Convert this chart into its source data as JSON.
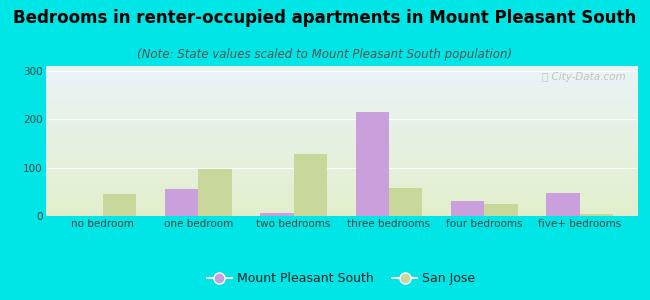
{
  "title": "Bedrooms in renter-occupied apartments in Mount Pleasant South",
  "subtitle": "(Note: State values scaled to Mount Pleasant South population)",
  "categories": [
    "no bedroom",
    "one bedroom",
    "two bedrooms",
    "three bedrooms",
    "four bedrooms",
    "five+ bedrooms"
  ],
  "mps_values": [
    0,
    55,
    7,
    215,
    32,
    47
  ],
  "sj_values": [
    45,
    97,
    128,
    57,
    25,
    5
  ],
  "mps_color": "#c9a0dc",
  "sj_color": "#c8d89a",
  "bar_width": 0.35,
  "ylim": [
    0,
    310
  ],
  "yticks": [
    0,
    100,
    200,
    300
  ],
  "bg_color": "#00e5e5",
  "plot_bg_top": "#eaf4f8",
  "plot_bg_bottom": "#e2efcc",
  "legend_mps": "Mount Pleasant South",
  "legend_sj": "San Jose",
  "title_fontsize": 12,
  "subtitle_fontsize": 8.5,
  "tick_fontsize": 7.5,
  "legend_fontsize": 9
}
